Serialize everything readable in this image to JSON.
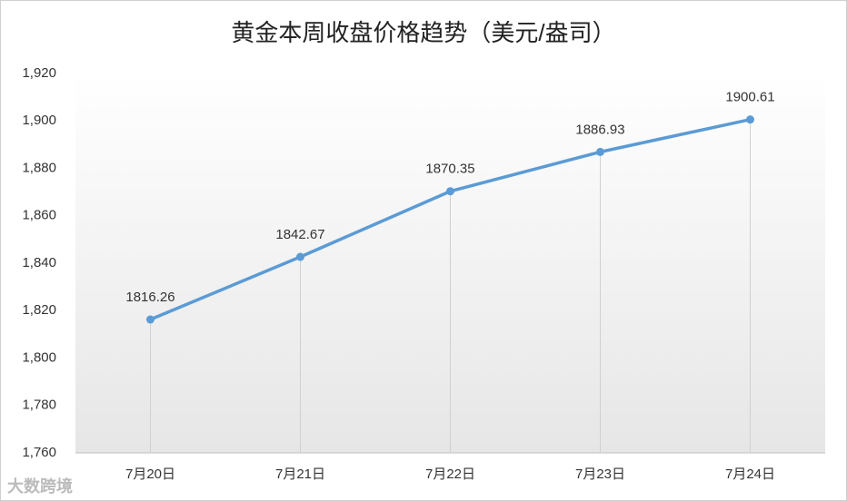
{
  "chart_data": {
    "type": "line",
    "title": "黄金本周收盘价格趋势（美元/盎司）",
    "categories": [
      "7月20日",
      "7月21日",
      "7月22日",
      "7月23日",
      "7月24日"
    ],
    "series": [
      {
        "name": "收盘价格",
        "color": "#5b9bd5",
        "values": [
          1816.26,
          1842.67,
          1870.35,
          1886.93,
          1900.61
        ]
      }
    ],
    "ylim": [
      1760,
      1920
    ],
    "yticks": [
      {
        "value": 1760,
        "label": "1,760"
      },
      {
        "value": 1780,
        "label": "1,780"
      },
      {
        "value": 1800,
        "label": "1,800"
      },
      {
        "value": 1820,
        "label": "1,820"
      },
      {
        "value": 1840,
        "label": "1,840"
      },
      {
        "value": 1860,
        "label": "1,860"
      },
      {
        "value": 1880,
        "label": "1,880"
      },
      {
        "value": 1900,
        "label": "1,900"
      },
      {
        "value": 1920,
        "label": "1,920"
      }
    ],
    "drop_lines": true,
    "watermark": "大数跨境"
  }
}
